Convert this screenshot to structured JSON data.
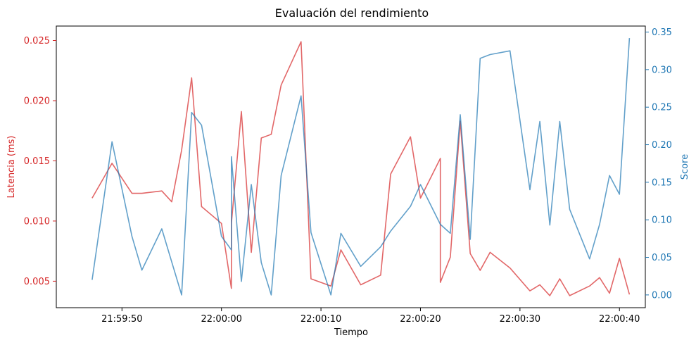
{
  "chart_data": {
    "type": "line",
    "title": "Evaluación del rendimiento",
    "xlabel": "Tiempo",
    "ylabel_left": "Latencia (ms)",
    "ylabel_right": "Score",
    "x_ticks": [
      "21:59:50",
      "22:00:00",
      "22:00:10",
      "22:00:20",
      "22:00:30",
      "22:00:40"
    ],
    "x_tick_times": [
      "21:59:50",
      "22:00:00",
      "22:00:10",
      "22:00:20",
      "22:00:30",
      "22:00:40"
    ],
    "xlim": [
      "21:59:43.4",
      "22:00:42.6"
    ],
    "y_left_ticks": [
      "0.005",
      "0.010",
      "0.015",
      "0.020",
      "0.025"
    ],
    "y_left_tick_values": [
      0.005,
      0.01,
      0.015,
      0.02,
      0.025
    ],
    "ylim_left": [
      0.0028,
      0.0262
    ],
    "y_right_ticks": [
      "0.00",
      "0.05",
      "0.10",
      "0.15",
      "0.20",
      "0.25",
      "0.30",
      "0.35"
    ],
    "y_right_tick_values": [
      0.0,
      0.05,
      0.1,
      0.15,
      0.2,
      0.25,
      0.3,
      0.35
    ],
    "ylim_right": [
      -0.017,
      0.358
    ],
    "grid": false,
    "colors": {
      "latency": "#d62728",
      "score": "#1f77b4"
    },
    "series": [
      {
        "axis": "left",
        "color": "#d62728",
        "points": [
          [
            "21:59:47",
            0.0119
          ],
          [
            "21:59:49",
            0.0148
          ],
          [
            "21:59:51",
            0.0123
          ],
          [
            "21:59:52",
            0.0123
          ],
          [
            "21:59:54",
            0.0125
          ],
          [
            "21:59:55",
            0.0116
          ],
          [
            "21:59:56",
            0.0159
          ],
          [
            "21:59:57",
            0.0219
          ],
          [
            "21:59:58",
            0.0112
          ],
          [
            "22:00:00",
            0.0098
          ],
          [
            "22:00:01",
            0.0044
          ],
          [
            "22:00:01",
            0.0098
          ],
          [
            "22:00:02",
            0.0191
          ],
          [
            "22:00:03",
            0.0074
          ],
          [
            "22:00:04",
            0.0169
          ],
          [
            "22:00:05",
            0.0172
          ],
          [
            "22:00:06",
            0.0213
          ],
          [
            "22:00:08",
            0.0249
          ],
          [
            "22:00:09",
            0.0052
          ],
          [
            "22:00:11",
            0.0046
          ],
          [
            "22:00:12",
            0.0076
          ],
          [
            "22:00:14",
            0.0047
          ],
          [
            "22:00:16",
            0.0055
          ],
          [
            "22:00:17",
            0.0139
          ],
          [
            "22:00:19",
            0.017
          ],
          [
            "22:00:20",
            0.0119
          ],
          [
            "22:00:22",
            0.0152
          ],
          [
            "22:00:22",
            0.0049
          ],
          [
            "22:00:23",
            0.007
          ],
          [
            "22:00:24",
            0.0183
          ],
          [
            "22:00:25",
            0.0073
          ],
          [
            "22:00:26",
            0.0059
          ],
          [
            "22:00:27",
            0.0074
          ],
          [
            "22:00:29",
            0.0061
          ],
          [
            "22:00:31",
            0.0042
          ],
          [
            "22:00:32",
            0.0047
          ],
          [
            "22:00:33",
            0.0038
          ],
          [
            "22:00:34",
            0.0052
          ],
          [
            "22:00:35",
            0.0038
          ],
          [
            "22:00:37",
            0.0046
          ],
          [
            "22:00:38",
            0.0053
          ],
          [
            "22:00:39",
            0.004
          ],
          [
            "22:00:40",
            0.0069
          ],
          [
            "22:00:41",
            0.0039
          ]
        ]
      },
      {
        "axis": "right",
        "color": "#1f77b4",
        "points": [
          [
            "21:59:47",
            0.02
          ],
          [
            "21:59:49",
            0.204
          ],
          [
            "21:59:51",
            0.078
          ],
          [
            "21:59:52",
            0.033
          ],
          [
            "21:59:54",
            0.088
          ],
          [
            "21:59:56",
            0.0
          ],
          [
            "21:59:57",
            0.243
          ],
          [
            "21:59:58",
            0.226
          ],
          [
            "22:00:00",
            0.078
          ],
          [
            "22:00:01",
            0.06
          ],
          [
            "22:00:01",
            0.184
          ],
          [
            "22:00:02",
            0.018
          ],
          [
            "22:00:03",
            0.147
          ],
          [
            "22:00:04",
            0.043
          ],
          [
            "22:00:05",
            0.0
          ],
          [
            "22:00:06",
            0.159
          ],
          [
            "22:00:08",
            0.265
          ],
          [
            "22:00:09",
            0.083
          ],
          [
            "22:00:11",
            0.0
          ],
          [
            "22:00:12",
            0.082
          ],
          [
            "22:00:14",
            0.038
          ],
          [
            "22:00:16",
            0.064
          ],
          [
            "22:00:17",
            0.085
          ],
          [
            "22:00:19",
            0.118
          ],
          [
            "22:00:20",
            0.147
          ],
          [
            "22:00:22",
            0.094
          ],
          [
            "22:00:23",
            0.082
          ],
          [
            "22:00:24",
            0.24
          ],
          [
            "22:00:25",
            0.074
          ],
          [
            "22:00:26",
            0.315
          ],
          [
            "22:00:27",
            0.32
          ],
          [
            "22:00:29",
            0.325
          ],
          [
            "22:00:31",
            0.14
          ],
          [
            "22:00:32",
            0.231
          ],
          [
            "22:00:33",
            0.093
          ],
          [
            "22:00:34",
            0.231
          ],
          [
            "22:00:35",
            0.114
          ],
          [
            "22:00:37",
            0.048
          ],
          [
            "22:00:38",
            0.094
          ],
          [
            "22:00:39",
            0.159
          ],
          [
            "22:00:40",
            0.134
          ],
          [
            "22:00:41",
            0.342
          ]
        ]
      }
    ]
  }
}
